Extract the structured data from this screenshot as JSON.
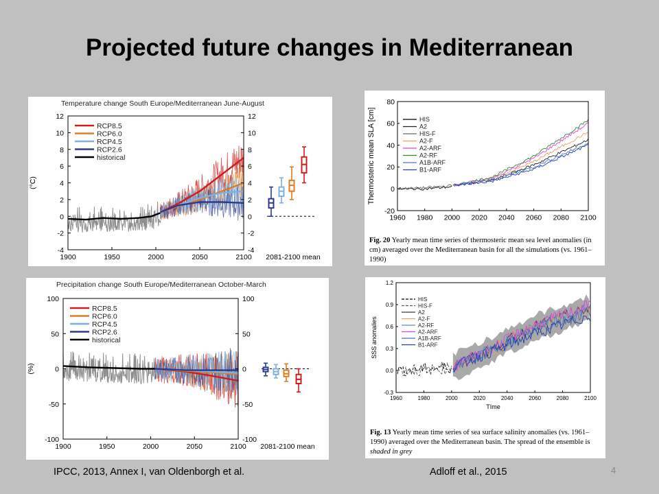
{
  "slide": {
    "title": "Projected future changes in Mediterranean",
    "citation_left": "IPCC, 2013, Annex I, van Oldenborgh et al.",
    "citation_right": "Adloff et al., 2015",
    "page_number": "4"
  },
  "colors": {
    "rcp85": "#cc1f1a",
    "rcp60": "#e07b1f",
    "rcp45": "#7fb0e0",
    "rcp26": "#2b3a8f",
    "historical": "#000000",
    "spread": "#8f8f8f"
  },
  "captions": {
    "sla_fig": "Fig. 20",
    "sla_text": "Yearly mean time series of thermosteric mean sea level anomalies (in cm) averaged over the Mediterranean basin for all the simulations (vs. 1961–1990)",
    "sss_fig": "Fig. 13",
    "sss_text_a": "Yearly mean time series of sea surface salinity anomalies (vs. 1961–1990) averaged over the Mediterranean basin. The spread of the ensemble is",
    "sss_text_b": "shaded in grey"
  },
  "chart_data": [
    {
      "id": "temp",
      "type": "line",
      "title": "Temperature change South Europe/Mediterranean June-August",
      "ylabel": "(°C)",
      "xlabel": "",
      "xlim": [
        1900,
        2100
      ],
      "ylim": [
        -4,
        12
      ],
      "xticks": [
        "1900",
        "1950",
        "2000",
        "2050",
        "2100"
      ],
      "yticks": [
        "-4",
        "-2",
        "0",
        "2",
        "4",
        "6",
        "8",
        "10",
        "12"
      ],
      "boxplot_label": "2081-2100 mean",
      "legend": [
        "RCP8.5",
        "RCP6.0",
        "RCP4.5",
        "RCP2.6",
        "historical"
      ],
      "series": [
        {
          "name": "historical",
          "x": [
            1900,
            1920,
            1940,
            1960,
            1980,
            1995,
            2005
          ],
          "y": [
            -0.3,
            -0.4,
            -0.2,
            -0.3,
            -0.2,
            0.0,
            0.4
          ]
        },
        {
          "name": "RCP8.5",
          "x": [
            2005,
            2025,
            2050,
            2075,
            2100
          ],
          "y": [
            0.5,
            1.5,
            3.0,
            5.0,
            7.0
          ]
        },
        {
          "name": "RCP6.0",
          "x": [
            2005,
            2025,
            2050,
            2075,
            2100
          ],
          "y": [
            0.5,
            1.2,
            2.0,
            3.0,
            4.0
          ]
        },
        {
          "name": "RCP4.5",
          "x": [
            2005,
            2025,
            2050,
            2075,
            2100
          ],
          "y": [
            0.5,
            1.3,
            2.2,
            2.8,
            3.0
          ]
        },
        {
          "name": "RCP2.6",
          "x": [
            2005,
            2025,
            2050,
            2075,
            2100
          ],
          "y": [
            0.5,
            1.3,
            1.7,
            1.7,
            1.6
          ]
        }
      ],
      "boxplots": [
        {
          "name": "RCP2.6",
          "min": 0.0,
          "q1": 1.0,
          "median": 1.6,
          "q3": 2.1,
          "max": 3.5
        },
        {
          "name": "RCP4.5",
          "min": 1.6,
          "q1": 2.4,
          "median": 3.0,
          "q3": 3.5,
          "max": 4.6
        },
        {
          "name": "RCP6.0",
          "min": 2.0,
          "q1": 3.0,
          "median": 3.7,
          "q3": 4.3,
          "max": 5.9
        },
        {
          "name": "RCP8.5",
          "min": 4.0,
          "q1": 5.2,
          "median": 6.2,
          "q3": 7.1,
          "max": 8.3
        }
      ]
    },
    {
      "id": "precip",
      "type": "line",
      "title": "Precipitation change South Europe/Mediterranean October-March",
      "ylabel": "(%)",
      "xlabel": "",
      "xlim": [
        1900,
        2100
      ],
      "ylim": [
        -100,
        100
      ],
      "xticks": [
        "1900",
        "1950",
        "2000",
        "2050",
        "2100"
      ],
      "yticks": [
        "-100",
        "-50",
        "0",
        "50",
        "100"
      ],
      "boxplot_label": "2081-2100 mean",
      "legend": [
        "RCP8.5",
        "RCP6.0",
        "RCP4.5",
        "RCP2.6",
        "historical"
      ],
      "series": [
        {
          "name": "historical",
          "x": [
            1900,
            1930,
            1960,
            1990,
            2005
          ],
          "y": [
            4,
            2,
            1,
            0,
            0
          ]
        },
        {
          "name": "RCP8.5",
          "x": [
            2005,
            2040,
            2070,
            2100
          ],
          "y": [
            0,
            -4,
            -10,
            -17
          ]
        },
        {
          "name": "RCP6.0",
          "x": [
            2005,
            2040,
            2070,
            2100
          ],
          "y": [
            0,
            -3,
            -5,
            -8
          ]
        },
        {
          "name": "RCP4.5",
          "x": [
            2005,
            2040,
            2070,
            2100
          ],
          "y": [
            0,
            -2,
            -4,
            -6
          ]
        },
        {
          "name": "RCP2.6",
          "x": [
            2005,
            2040,
            2070,
            2100
          ],
          "y": [
            0,
            -2,
            -2,
            -2
          ]
        }
      ],
      "boxplots": [
        {
          "name": "RCP2.6",
          "min": -10,
          "q1": -4,
          "median": -1,
          "q3": 2,
          "max": 8
        },
        {
          "name": "RCP4.5",
          "min": -13,
          "q1": -8,
          "median": -4,
          "q3": 0,
          "max": 6
        },
        {
          "name": "RCP6.0",
          "min": -18,
          "q1": -11,
          "median": -7,
          "q3": -2,
          "max": 7
        },
        {
          "name": "RCP8.5",
          "min": -33,
          "q1": -21,
          "median": -15,
          "q3": -8,
          "max": 0
        }
      ]
    },
    {
      "id": "sla",
      "type": "line",
      "ylabel": "Thermosteric mean SLA [cm]",
      "xlabel": "",
      "xlim": [
        1960,
        2100
      ],
      "ylim": [
        -20,
        80
      ],
      "xticks": [
        "1960",
        "1980",
        "2000",
        "2020",
        "2040",
        "2060",
        "2080",
        "2100"
      ],
      "yticks": [
        "-20",
        "0",
        "20",
        "40",
        "60",
        "80"
      ],
      "series": [
        {
          "name": "HIS",
          "color": "#000000",
          "x": [
            1961,
            1980,
            2000
          ],
          "y": [
            0,
            0,
            2
          ]
        },
        {
          "name": "A2",
          "color": "#1f1f1f",
          "x": [
            2001,
            2030,
            2060,
            2100
          ],
          "y": [
            3,
            8,
            22,
            45
          ]
        },
        {
          "name": "HIS-F",
          "color": "#6b6b6b",
          "x": [
            1961,
            1980,
            2000
          ],
          "y": [
            0,
            1,
            3
          ]
        },
        {
          "name": "A2-F",
          "color": "#e8a060",
          "x": [
            2001,
            2030,
            2060,
            2100
          ],
          "y": [
            3,
            9,
            25,
            52
          ]
        },
        {
          "name": "A2-ARF",
          "color": "#e040e0",
          "x": [
            2001,
            2030,
            2060,
            2100
          ],
          "y": [
            3,
            10,
            28,
            60
          ]
        },
        {
          "name": "A2-RF",
          "color": "#2e8b2e",
          "x": [
            2001,
            2030,
            2060,
            2100
          ],
          "y": [
            3,
            11,
            30,
            63
          ]
        },
        {
          "name": "A1B-ARF",
          "color": "#4a78c8",
          "x": [
            2001,
            2030,
            2060,
            2100
          ],
          "y": [
            3,
            8,
            20,
            42
          ]
        },
        {
          "name": "B1-ARF",
          "color": "#2040c0",
          "x": [
            2001,
            2030,
            2060,
            2100
          ],
          "y": [
            3,
            7,
            18,
            40
          ]
        }
      ]
    },
    {
      "id": "sss",
      "type": "line",
      "ylabel": "SSS anomalies",
      "xlabel": "TIme",
      "xlim": [
        1960,
        2100
      ],
      "ylim": [
        -0.3,
        1.2
      ],
      "xticks": [
        "1960",
        "1980",
        "2000",
        "2020",
        "2040",
        "2060",
        "2080",
        "2100"
      ],
      "yticks": [
        "-0.3",
        "0.0",
        "0.3",
        "0.6",
        "0.9",
        "1.2"
      ],
      "series": [
        {
          "name": "HIS",
          "color": "#000000",
          "x": [
            1961,
            1980,
            2000
          ],
          "y": [
            0.0,
            0.02,
            0.05
          ]
        },
        {
          "name": "HIS-F",
          "color": "#555555",
          "x": [
            1961,
            1980,
            2000
          ],
          "y": [
            0.0,
            0.0,
            0.04
          ]
        },
        {
          "name": "A2",
          "color": "#3a3a3a",
          "x": [
            2001,
            2030,
            2060,
            2100
          ],
          "y": [
            0.05,
            0.3,
            0.6,
            0.85
          ]
        },
        {
          "name": "A2-F",
          "color": "#e8a060",
          "x": [
            2001,
            2030,
            2060,
            2100
          ],
          "y": [
            0.05,
            0.3,
            0.6,
            0.85
          ]
        },
        {
          "name": "A2-RF",
          "color": "#4a90d0",
          "x": [
            2001,
            2030,
            2060,
            2100
          ],
          "y": [
            0.05,
            0.3,
            0.6,
            0.85
          ]
        },
        {
          "name": "A2-ARF",
          "color": "#e040e0",
          "x": [
            2001,
            2030,
            2060,
            2100
          ],
          "y": [
            0.05,
            0.32,
            0.62,
            0.9
          ]
        },
        {
          "name": "A1B-ARF",
          "color": "#5a6ab0",
          "x": [
            2001,
            2030,
            2060,
            2100
          ],
          "y": [
            0.05,
            0.28,
            0.55,
            0.8
          ]
        },
        {
          "name": "B1-ARF",
          "color": "#1f3fb0",
          "x": [
            2001,
            2030,
            2060,
            2100
          ],
          "y": [
            0.05,
            0.27,
            0.5,
            0.75
          ]
        }
      ]
    }
  ]
}
